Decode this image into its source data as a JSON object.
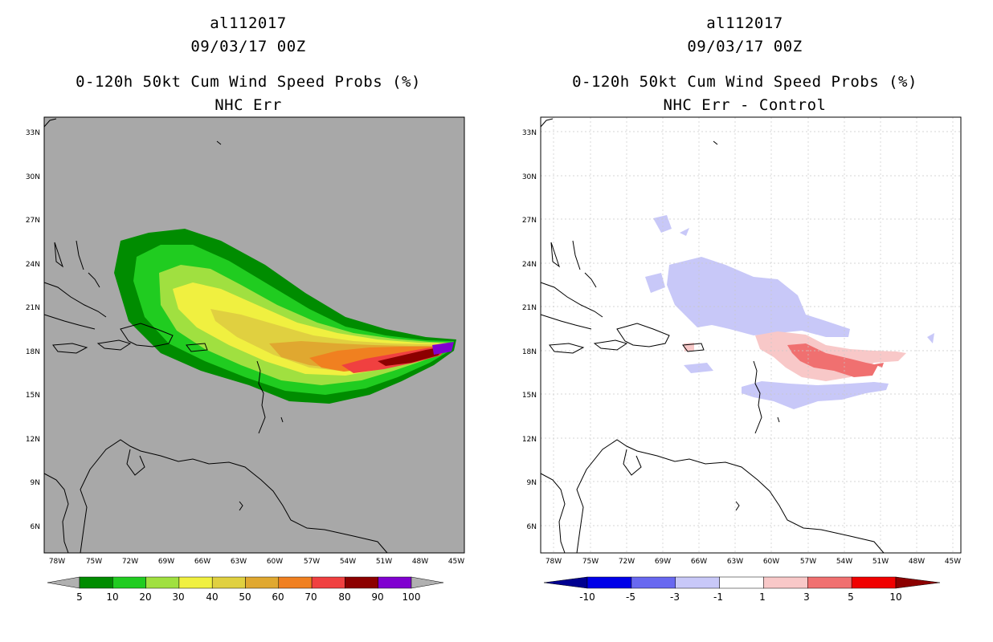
{
  "left": {
    "storm_id": "al112017",
    "datetime": "09/03/17 00Z",
    "product": "0-120h 50kt Cum Wind Speed Probs (%)",
    "subtitle": "NHC Err",
    "colorbar": {
      "labels": [
        "5",
        "10",
        "20",
        "30",
        "40",
        "50",
        "60",
        "70",
        "80",
        "90",
        "100"
      ],
      "colors": [
        "#008c00",
        "#20cc20",
        "#a0e040",
        "#f0f040",
        "#e0d040",
        "#e0a830",
        "#f08020",
        "#f04040",
        "#8c0000",
        "#8000d0"
      ],
      "end_color": "#b0b0b0"
    }
  },
  "right": {
    "storm_id": "al112017",
    "datetime": "09/03/17 00Z",
    "product": "0-120h 50kt Cum Wind Speed Probs (%)",
    "subtitle": "NHC Err - Control",
    "colorbar": {
      "labels": [
        "-10",
        "-5",
        "-3",
        "-1",
        "1",
        "3",
        "5",
        "10"
      ],
      "colors": [
        "#0000e8",
        "#6868f0",
        "#c8c8f8",
        "#ffffff",
        "#f8c8c8",
        "#f07070",
        "#f00000"
      ],
      "low_color": "#000090",
      "high_color": "#8c0000"
    }
  },
  "axes": {
    "lat_labels": [
      "33N",
      "30N",
      "27N",
      "24N",
      "21N",
      "18N",
      "15N",
      "12N",
      "9N",
      "6N"
    ],
    "lon_labels": [
      "78W",
      "75W",
      "72W",
      "69W",
      "66W",
      "63W",
      "60W",
      "57W",
      "54W",
      "51W",
      "48W",
      "45W"
    ]
  },
  "colors": {
    "map_gray": "#a8a8a8",
    "grid": "#c8c8c8"
  }
}
